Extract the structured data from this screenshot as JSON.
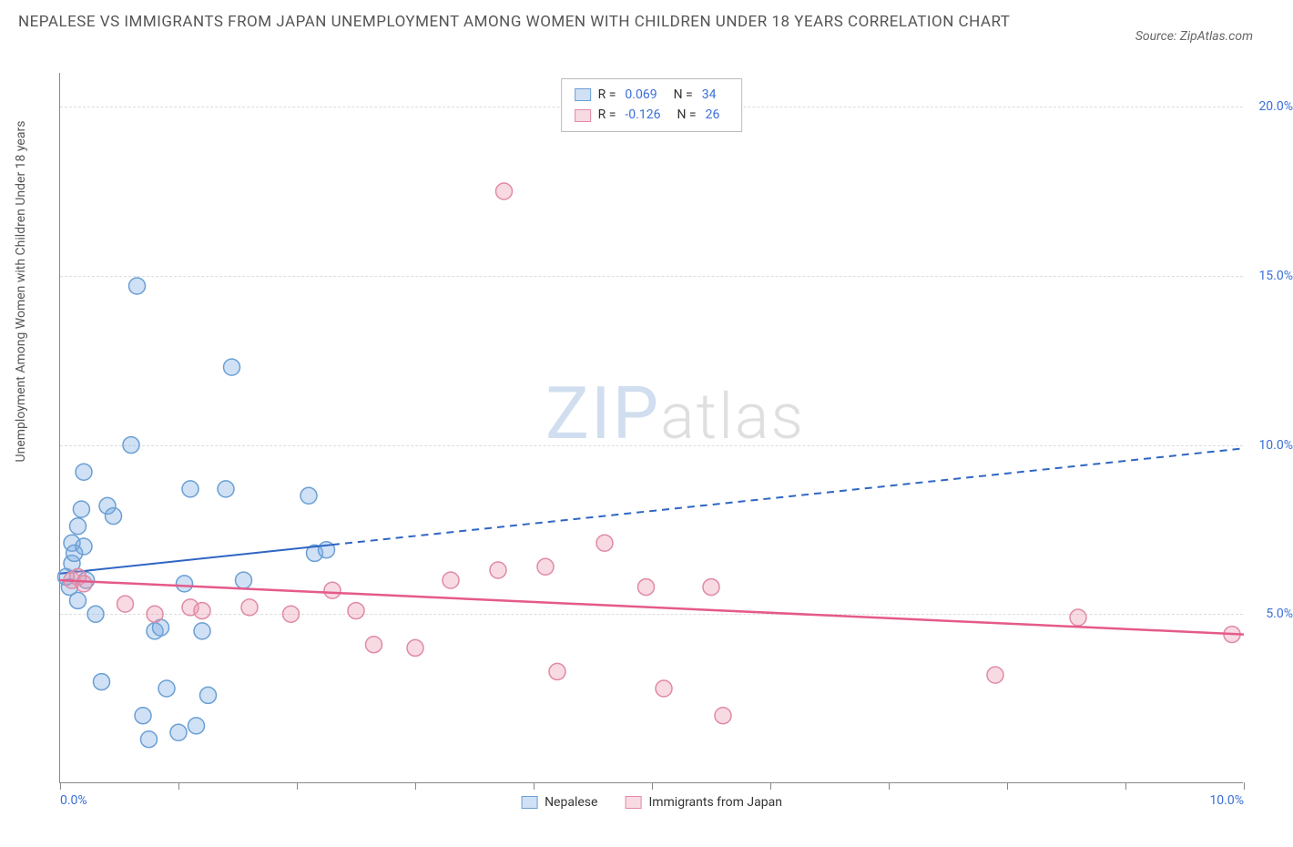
{
  "header": {
    "title": "NEPALESE VS IMMIGRANTS FROM JAPAN UNEMPLOYMENT AMONG WOMEN WITH CHILDREN UNDER 18 YEARS CORRELATION CHART",
    "source": "Source: ZipAtlas.com"
  },
  "chart": {
    "type": "scatter",
    "y_axis_title": "Unemployment Among Women with Children Under 18 years",
    "xlim": [
      0,
      10
    ],
    "ylim": [
      0,
      21
    ],
    "x_ticks": [
      0,
      1,
      2,
      3,
      4,
      5,
      6,
      7,
      8,
      9,
      10
    ],
    "x_tick_labels": {
      "0": "0.0%",
      "10": "10.0%"
    },
    "y_ticks": [
      5,
      10,
      15,
      20
    ],
    "y_tick_labels": {
      "5": "5.0%",
      "10": "10.0%",
      "15": "15.0%",
      "20": "20.0%"
    },
    "y_tick_color": "#3a6fd8",
    "x_tick_color": "#3a6fd8",
    "background_color": "#ffffff",
    "grid_color": "#dddddd",
    "marker_radius": 9,
    "marker_stroke_width": 1.5,
    "series": [
      {
        "name": "Nepalese",
        "fill": "rgba(120,170,225,0.35)",
        "stroke": "#6a9fd4",
        "r_value": "0.069",
        "n_value": "34",
        "trend": {
          "y_at_x0": 6.2,
          "y_at_x10": 9.9,
          "solid_until_x": 2.3,
          "color": "#2f66c4",
          "width": 2
        },
        "points": [
          [
            0.05,
            6.1
          ],
          [
            0.08,
            5.8
          ],
          [
            0.1,
            6.5
          ],
          [
            0.1,
            7.1
          ],
          [
            0.12,
            6.8
          ],
          [
            0.15,
            5.4
          ],
          [
            0.15,
            7.6
          ],
          [
            0.18,
            8.1
          ],
          [
            0.2,
            7.0
          ],
          [
            0.2,
            9.2
          ],
          [
            0.22,
            6.0
          ],
          [
            0.3,
            5.0
          ],
          [
            0.35,
            3.0
          ],
          [
            0.4,
            8.2
          ],
          [
            0.45,
            7.9
          ],
          [
            0.6,
            10.0
          ],
          [
            0.65,
            14.7
          ],
          [
            0.7,
            2.0
          ],
          [
            0.75,
            1.3
          ],
          [
            0.8,
            4.5
          ],
          [
            0.85,
            4.6
          ],
          [
            0.9,
            2.8
          ],
          [
            1.0,
            1.5
          ],
          [
            1.05,
            5.9
          ],
          [
            1.1,
            8.7
          ],
          [
            1.15,
            1.7
          ],
          [
            1.2,
            4.5
          ],
          [
            1.25,
            2.6
          ],
          [
            1.4,
            8.7
          ],
          [
            1.45,
            12.3
          ],
          [
            1.55,
            6.0
          ],
          [
            2.1,
            8.5
          ],
          [
            2.15,
            6.8
          ],
          [
            2.25,
            6.9
          ]
        ]
      },
      {
        "name": "Immigrants from Japan",
        "fill": "rgba(235,150,175,0.35)",
        "stroke": "#e08aa5",
        "r_value": "-0.126",
        "n_value": "26",
        "trend": {
          "y_at_x0": 6.0,
          "y_at_x10": 4.4,
          "solid_until_x": 10,
          "color": "#e55a8a",
          "width": 2.5
        },
        "points": [
          [
            0.1,
            6.0
          ],
          [
            0.15,
            6.1
          ],
          [
            0.2,
            5.9
          ],
          [
            0.55,
            5.3
          ],
          [
            0.8,
            5.0
          ],
          [
            1.1,
            5.2
          ],
          [
            1.2,
            5.1
          ],
          [
            1.6,
            5.2
          ],
          [
            1.95,
            5.0
          ],
          [
            2.3,
            5.7
          ],
          [
            2.5,
            5.1
          ],
          [
            2.65,
            4.1
          ],
          [
            3.0,
            4.0
          ],
          [
            3.3,
            6.0
          ],
          [
            3.7,
            6.3
          ],
          [
            3.75,
            17.5
          ],
          [
            4.1,
            6.4
          ],
          [
            4.2,
            3.3
          ],
          [
            4.6,
            7.1
          ],
          [
            4.95,
            5.8
          ],
          [
            5.1,
            2.8
          ],
          [
            5.5,
            5.8
          ],
          [
            5.6,
            2.0
          ],
          [
            7.9,
            3.2
          ],
          [
            8.6,
            4.9
          ],
          [
            9.9,
            4.4
          ]
        ]
      }
    ],
    "legend_bottom": [
      {
        "label": "Nepalese",
        "fill": "rgba(120,170,225,0.35)",
        "stroke": "#6a9fd4"
      },
      {
        "label": "Immigrants from Japan",
        "fill": "rgba(235,150,175,0.35)",
        "stroke": "#e08aa5"
      }
    ],
    "watermark": {
      "part1": "ZIP",
      "part2": "atlas"
    }
  }
}
